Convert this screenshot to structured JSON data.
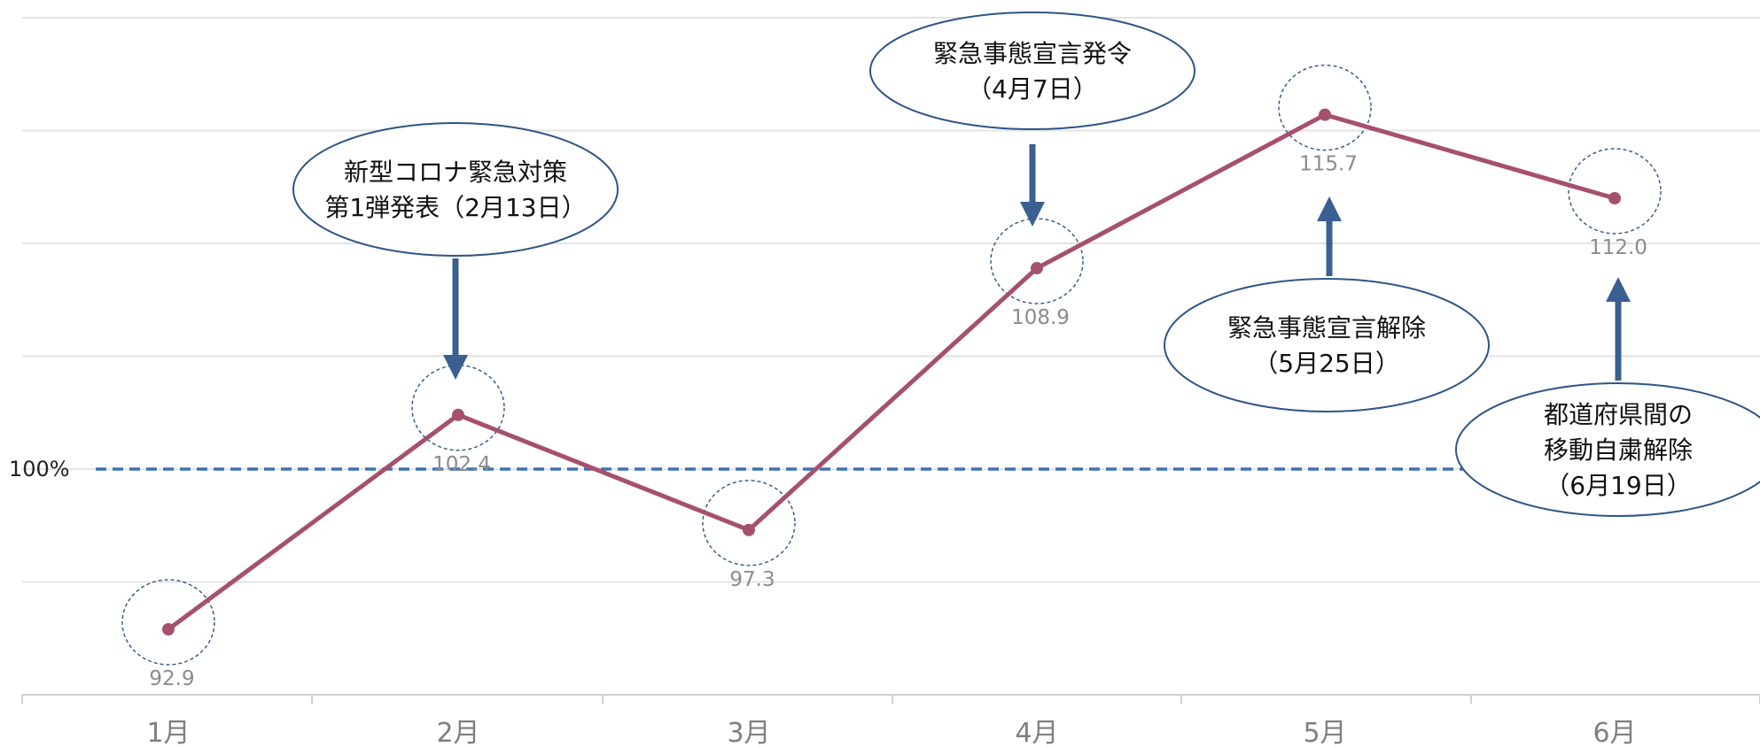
{
  "chart_data": {
    "type": "line",
    "categories": [
      "1月",
      "2月",
      "3月",
      "4月",
      "5月",
      "6月"
    ],
    "series": [
      {
        "values": [
          92.9,
          102.4,
          97.3,
          108.9,
          115.7,
          112.0
        ]
      }
    ],
    "data_labels": [
      "92.9",
      "102.4",
      "97.3",
      "108.9",
      "115.7",
      "112.0"
    ],
    "reference_line": {
      "value": 100,
      "label": "100%"
    },
    "ylim": [
      90,
      120
    ],
    "grid": true,
    "colors": {
      "line": "#a6506f",
      "reference": "#3c73b4",
      "arrow": "#3a5f91",
      "callout_border": "#2f5587",
      "marker_circle": "#2f5587",
      "gridline": "#e3e3e3"
    },
    "annotations": [
      {
        "category": "2月",
        "lines": [
          "新型コロナ緊急対策",
          "第1弾発表（2月13日）"
        ],
        "arrow": "down"
      },
      {
        "category": "4月",
        "lines": [
          "緊急事態宣言発令",
          "（4月7日）"
        ],
        "arrow": "down"
      },
      {
        "category": "5月",
        "lines": [
          "緊急事態宣言解除",
          "（5月25日）"
        ],
        "arrow": "up"
      },
      {
        "category": "6月",
        "lines": [
          "都道府県間の",
          "移動自粛解除",
          "（6月19日）"
        ],
        "arrow": "up"
      }
    ]
  }
}
